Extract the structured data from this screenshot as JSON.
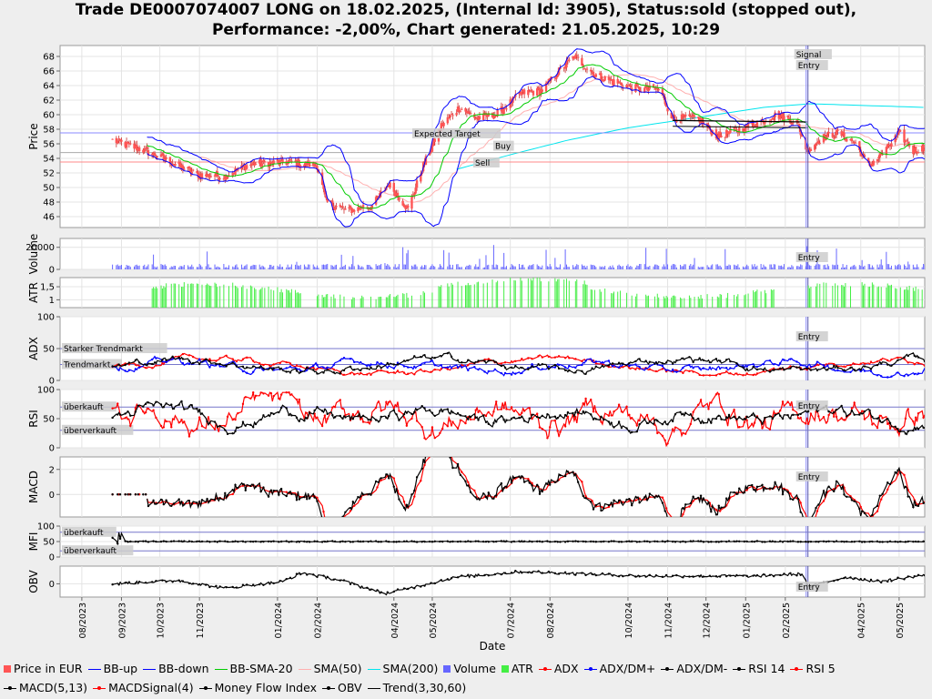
{
  "title": {
    "line1": "Trade DE0007074007 LONG on 18.02.2025, (Internal Id: 3905), Status:sold (stopped out),",
    "line2": "Performance: -2,00%, Chart generated: 21.05.2025, 10:29"
  },
  "chart_data": {
    "type": "line",
    "xlabel": "Date",
    "x_ticks": [
      "08/2023",
      "09/2023",
      "10/2023",
      "11/2023",
      "01/2024",
      "02/2024",
      "04/2024",
      "05/2024",
      "07/2024",
      "08/2024",
      "10/2024",
      "11/2024",
      "12/2024",
      "01/2025",
      "02/2025",
      "04/2025",
      "05/2025"
    ],
    "x_range": [
      "2023-07-15",
      "2025-05-21"
    ],
    "entry_date": "2025-02-18",
    "panels": [
      {
        "id": "price",
        "ylabel": "Price",
        "ylim": [
          44.5,
          69.5
        ],
        "yticks": [
          46,
          48,
          50,
          52,
          54,
          56,
          58,
          60,
          62,
          64,
          66,
          68
        ],
        "price_keypoints": [
          [
            "2023-08-25",
            56.5
          ],
          [
            "2023-09-20",
            55
          ],
          [
            "2023-10-10",
            53.5
          ],
          [
            "2023-10-30",
            51.8
          ],
          [
            "2023-11-20",
            51.5
          ],
          [
            "2023-12-10",
            53.2
          ],
          [
            "2024-01-10",
            53.5
          ],
          [
            "2024-02-01",
            53
          ],
          [
            "2024-02-08",
            48
          ],
          [
            "2024-02-25",
            46.8
          ],
          [
            "2024-03-15",
            47.5
          ],
          [
            "2024-03-28",
            50.5
          ],
          [
            "2024-04-12",
            47
          ],
          [
            "2024-04-24",
            53
          ],
          [
            "2024-05-08",
            58.5
          ],
          [
            "2024-05-22",
            61
          ],
          [
            "2024-06-05",
            59.5
          ],
          [
            "2024-06-20",
            60
          ],
          [
            "2024-07-10",
            63
          ],
          [
            "2024-07-25",
            63.2
          ],
          [
            "2024-08-08",
            66
          ],
          [
            "2024-08-20",
            68
          ],
          [
            "2024-09-05",
            65.5
          ],
          [
            "2024-09-20",
            64.5
          ],
          [
            "2024-10-10",
            63.5
          ],
          [
            "2024-10-25",
            63.5
          ],
          [
            "2024-11-05",
            59.5
          ],
          [
            "2024-11-25",
            59.5
          ],
          [
            "2024-12-10",
            57
          ],
          [
            "2025-01-05",
            58.5
          ],
          [
            "2025-01-25",
            60
          ],
          [
            "2025-02-10",
            59
          ],
          [
            "2025-02-18",
            55
          ],
          [
            "2025-03-01",
            56.8
          ],
          [
            "2025-03-15",
            57.5
          ],
          [
            "2025-03-28",
            56
          ],
          [
            "2025-04-07",
            53
          ],
          [
            "2025-04-20",
            55
          ],
          [
            "2025-05-01",
            57.5
          ],
          [
            "2025-05-12",
            55
          ],
          [
            "2025-05-21",
            55.5
          ]
        ],
        "sma200_keypoints": [
          [
            "2024-05-20",
            52.5
          ],
          [
            "2024-07-01",
            54.5
          ],
          [
            "2024-08-15",
            56.5
          ],
          [
            "2024-10-01",
            58.2
          ],
          [
            "2024-11-20",
            59.5
          ],
          [
            "2025-01-15",
            61
          ],
          [
            "2025-02-20",
            61.5
          ],
          [
            "2025-05-21",
            61
          ]
        ],
        "annotations": [
          "Signal",
          "Entry",
          "Expected Target",
          "Buy",
          "Sell"
        ],
        "expected_target": 57.5,
        "buy_level": 54.8,
        "sell_level": 53.5
      },
      {
        "id": "volume",
        "ylabel": "Volume",
        "ylim": [
          0,
          28000
        ],
        "yticks": [
          0,
          20000
        ]
      },
      {
        "id": "atr",
        "ylabel": "ATR",
        "ylim": [
          0.7,
          1.85
        ],
        "yticks": [
          1,
          1.5
        ],
        "ytick_labels": [
          "1",
          "1,5"
        ]
      },
      {
        "id": "adx",
        "ylabel": "ADX",
        "ylim": [
          0,
          100
        ],
        "yticks": [
          0,
          50,
          100
        ],
        "levels": [
          {
            "label": "Starker Trendmarkt",
            "value": 50
          },
          {
            "label": "Trendmarkt",
            "value": 25
          }
        ]
      },
      {
        "id": "rsi",
        "ylabel": "RSI",
        "ylim": [
          0,
          100
        ],
        "yticks": [
          0,
          50,
          100
        ],
        "levels": [
          {
            "label": "überkauft",
            "value": 70
          },
          {
            "label": "überverkauft",
            "value": 30
          }
        ]
      },
      {
        "id": "macd",
        "ylabel": "MACD",
        "ylim": [
          -1.8,
          3
        ],
        "yticks": [
          0,
          2
        ]
      },
      {
        "id": "mfi",
        "ylabel": "MFI",
        "ylim": [
          0,
          100
        ],
        "yticks": [
          0,
          50,
          100
        ],
        "levels": [
          {
            "label": "überkauft",
            "value": 80
          },
          {
            "label": "überverkauft",
            "value": 20
          }
        ]
      },
      {
        "id": "obv",
        "ylabel": "OBV",
        "ylim": [
          -1.2,
          1.6
        ],
        "yticks": [
          0
        ]
      }
    ],
    "entry_label": "Entry",
    "signal_label": "Signal",
    "legend": [
      {
        "label": "Price in EUR",
        "color": "#ff5555",
        "kind": "box"
      },
      {
        "label": "BB-up",
        "color": "#0000ff",
        "kind": "line"
      },
      {
        "label": "BB-down",
        "color": "#0000ff",
        "kind": "line"
      },
      {
        "label": "BB-SMA-20",
        "color": "#00cc00",
        "kind": "line"
      },
      {
        "label": "SMA(50)",
        "color": "#ffb0b0",
        "kind": "line"
      },
      {
        "label": "SMA(200)",
        "color": "#00e5ee",
        "kind": "line"
      },
      {
        "label": "Volume",
        "color": "#6666ff",
        "kind": "box"
      },
      {
        "label": "ATR",
        "color": "#44ee44",
        "kind": "box"
      },
      {
        "label": "ADX",
        "color": "#ff0000",
        "kind": "dotline"
      },
      {
        "label": "ADX/DM+",
        "color": "#0000ff",
        "kind": "dotline"
      },
      {
        "label": "ADX/DM-",
        "color": "#000000",
        "kind": "dotline"
      },
      {
        "label": "RSI 14",
        "color": "#000000",
        "kind": "dotline"
      },
      {
        "label": "RSI 5",
        "color": "#ff0000",
        "kind": "dotline"
      },
      {
        "label": "MACD(5,13)",
        "color": "#000000",
        "kind": "dotline"
      },
      {
        "label": "MACDSignal(4)",
        "color": "#ff0000",
        "kind": "dotline"
      },
      {
        "label": "Money Flow Index",
        "color": "#000000",
        "kind": "dotline"
      },
      {
        "label": "OBV",
        "color": "#000000",
        "kind": "dotline"
      },
      {
        "label": "Trend(3,30,60)",
        "color": "#000000",
        "kind": "line"
      }
    ]
  }
}
